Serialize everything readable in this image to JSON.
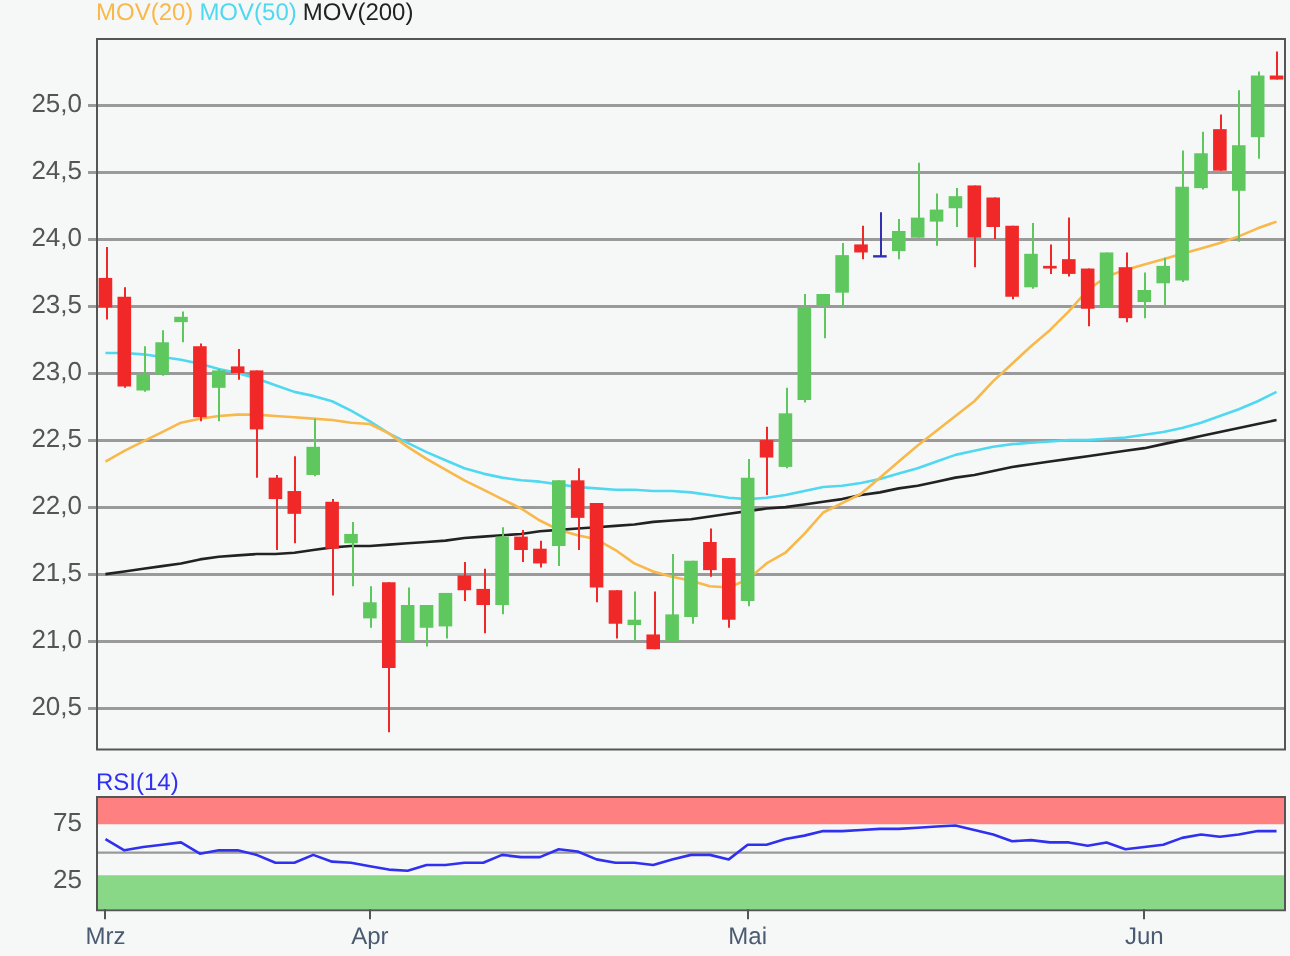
{
  "chart_data": [
    {
      "type": "candlestick",
      "categories": [
        null,
        null,
        null,
        null,
        null,
        null,
        null,
        null,
        null,
        null,
        null,
        null,
        null,
        null,
        null,
        null,
        null,
        null,
        null,
        null,
        null,
        null,
        null,
        null,
        null,
        null,
        null,
        null,
        null,
        null,
        null,
        null,
        null,
        null,
        null,
        null,
        null,
        null,
        null,
        null,
        null,
        null,
        null,
        null,
        null,
        null,
        null,
        null,
        null,
        null,
        null,
        null,
        null,
        null,
        null,
        null,
        null,
        null,
        null,
        null,
        null,
        null,
        null
      ],
      "ohlc": [
        [
          23.71,
          23.94,
          23.4,
          23.49
        ],
        [
          23.57,
          23.64,
          22.89,
          22.9
        ],
        [
          22.87,
          23.2,
          22.86,
          22.99
        ],
        [
          22.99,
          23.32,
          22.98,
          23.23
        ],
        [
          23.38,
          23.46,
          23.23,
          23.42
        ],
        [
          23.2,
          23.22,
          22.64,
          22.67
        ],
        [
          22.89,
          23.03,
          22.64,
          23.02
        ],
        [
          23.05,
          23.18,
          22.95,
          23.0
        ],
        [
          23.02,
          23.02,
          22.22,
          22.58
        ],
        [
          22.22,
          22.24,
          21.68,
          22.06
        ],
        [
          22.12,
          22.38,
          21.73,
          21.95
        ],
        [
          22.24,
          22.66,
          22.23,
          22.45
        ],
        [
          22.04,
          22.06,
          21.34,
          21.69
        ],
        [
          21.73,
          21.89,
          21.41,
          21.8
        ],
        [
          21.17,
          21.41,
          21.1,
          21.29
        ],
        [
          21.44,
          21.44,
          20.32,
          20.8
        ],
        [
          21.0,
          21.4,
          20.99,
          21.27
        ],
        [
          21.1,
          21.27,
          20.96,
          21.27
        ],
        [
          21.11,
          21.36,
          21.02,
          21.36
        ],
        [
          21.49,
          21.59,
          21.3,
          21.38
        ],
        [
          21.39,
          21.54,
          21.06,
          21.27
        ],
        [
          21.27,
          21.85,
          21.2,
          21.78
        ],
        [
          21.78,
          21.83,
          21.59,
          21.68
        ],
        [
          21.69,
          21.75,
          21.55,
          21.58
        ],
        [
          21.71,
          22.2,
          21.56,
          22.2
        ],
        [
          22.2,
          22.29,
          21.68,
          21.92
        ],
        [
          22.03,
          22.03,
          21.29,
          21.4
        ],
        [
          21.38,
          21.38,
          21.02,
          21.13
        ],
        [
          21.12,
          21.37,
          21.0,
          21.16
        ],
        [
          21.05,
          21.37,
          20.94,
          20.94
        ],
        [
          21.0,
          21.65,
          21.0,
          21.2
        ],
        [
          21.18,
          21.6,
          21.13,
          21.6
        ],
        [
          21.74,
          21.84,
          21.48,
          21.53
        ],
        [
          21.62,
          21.62,
          21.1,
          21.16
        ],
        [
          21.3,
          22.36,
          21.26,
          22.22
        ],
        [
          22.5,
          22.6,
          22.09,
          22.37
        ],
        [
          22.3,
          22.89,
          22.29,
          22.7
        ],
        [
          22.8,
          23.59,
          22.78,
          23.49
        ],
        [
          23.5,
          23.59,
          23.26,
          23.59
        ],
        [
          23.6,
          23.97,
          23.49,
          23.88
        ],
        [
          23.96,
          24.1,
          23.85,
          23.9
        ],
        [
          23.88,
          24.2,
          23.87,
          23.88
        ],
        [
          23.91,
          24.15,
          23.85,
          24.06
        ],
        [
          24.01,
          24.57,
          24.01,
          24.16
        ],
        [
          24.13,
          24.34,
          23.95,
          24.22
        ],
        [
          24.23,
          24.38,
          24.09,
          24.32
        ],
        [
          24.4,
          24.4,
          23.79,
          24.01
        ],
        [
          24.31,
          24.31,
          24.0,
          24.09
        ],
        [
          24.1,
          24.1,
          23.55,
          23.57
        ],
        [
          23.64,
          24.12,
          23.63,
          23.89
        ],
        [
          23.8,
          23.96,
          23.74,
          23.78
        ],
        [
          23.85,
          24.16,
          23.72,
          23.74
        ],
        [
          23.78,
          23.78,
          23.35,
          23.48
        ],
        [
          23.49,
          23.9,
          23.49,
          23.9
        ],
        [
          23.79,
          23.9,
          23.38,
          23.41
        ],
        [
          23.53,
          23.75,
          23.41,
          23.62
        ],
        [
          23.67,
          23.86,
          23.5,
          23.8
        ],
        [
          23.69,
          24.66,
          23.68,
          24.39
        ],
        [
          24.38,
          24.8,
          24.37,
          24.64
        ],
        [
          24.82,
          24.93,
          24.51,
          24.51
        ],
        [
          24.36,
          25.11,
          23.98,
          24.7
        ],
        [
          24.76,
          25.25,
          24.6,
          25.22
        ],
        [
          25.22,
          25.4,
          25.19,
          25.19
        ]
      ],
      "colors": [
        "#f02828",
        "#f02828",
        "#5ec85e",
        "#5ec85e",
        "#5ec85e",
        "#f02828",
        "#5ec85e",
        "#f02828",
        "#f02828",
        "#f02828",
        "#f02828",
        "#5ec85e",
        "#f02828",
        "#5ec85e",
        "#5ec85e",
        "#f02828",
        "#5ec85e",
        "#5ec85e",
        "#5ec85e",
        "#f02828",
        "#f02828",
        "#5ec85e",
        "#f02828",
        "#f02828",
        "#5ec85e",
        "#f02828",
        "#f02828",
        "#f02828",
        "#5ec85e",
        "#f02828",
        "#5ec85e",
        "#5ec85e",
        "#f02828",
        "#f02828",
        "#5ec85e",
        "#f02828",
        "#5ec85e",
        "#5ec85e",
        "#5ec85e",
        "#5ec85e",
        "#f02828",
        "#3030b0",
        "#5ec85e",
        "#5ec85e",
        "#5ec85e",
        "#5ec85e",
        "#f02828",
        "#f02828",
        "#f02828",
        "#5ec85e",
        "#f02828",
        "#f02828",
        "#f02828",
        "#5ec85e",
        "#f02828",
        "#5ec85e",
        "#5ec85e",
        "#5ec85e",
        "#5ec85e",
        "#f02828",
        "#5ec85e",
        "#5ec85e",
        "#f02828"
      ],
      "series": [
        {
          "name": "MOV(20)",
          "type": "line",
          "color": "#f8b84a",
          "values": [
            22.34,
            22.42,
            22.49,
            22.56,
            22.63,
            22.66,
            22.68,
            22.69,
            22.69,
            22.68,
            22.67,
            22.66,
            22.65,
            22.63,
            22.62,
            22.55,
            22.45,
            22.36,
            22.28,
            22.2,
            22.13,
            22.06,
            21.99,
            21.9,
            21.83,
            21.79,
            21.76,
            21.68,
            21.58,
            21.52,
            21.48,
            21.45,
            21.41,
            21.4,
            21.46,
            21.58,
            21.66,
            21.8,
            21.96,
            22.03,
            22.1,
            22.22,
            22.34,
            22.46,
            22.57,
            22.68,
            22.79,
            22.94,
            23.07,
            23.2,
            23.32,
            23.46,
            23.62,
            23.72,
            23.77,
            23.81,
            23.85,
            23.89,
            23.93,
            23.97,
            24.02,
            24.08,
            24.13
          ]
        },
        {
          "name": "MOV(50)",
          "type": "line",
          "color": "#50d8f0",
          "values": [
            23.15,
            23.15,
            23.14,
            23.12,
            23.1,
            23.07,
            23.03,
            23.0,
            22.96,
            22.91,
            22.86,
            22.83,
            22.79,
            22.72,
            22.64,
            22.55,
            22.48,
            22.41,
            22.35,
            22.29,
            22.25,
            22.22,
            22.2,
            22.19,
            22.17,
            22.15,
            22.14,
            22.13,
            22.13,
            22.12,
            22.12,
            22.11,
            22.09,
            22.07,
            22.06,
            22.07,
            22.09,
            22.12,
            22.15,
            22.16,
            22.18,
            22.21,
            22.25,
            22.29,
            22.34,
            22.39,
            22.42,
            22.45,
            22.47,
            22.48,
            22.49,
            22.5,
            22.5,
            22.51,
            22.52,
            22.54,
            22.56,
            22.59,
            22.63,
            22.68,
            22.73,
            22.79,
            22.86
          ]
        },
        {
          "name": "MOV(200)",
          "type": "line",
          "color": "#222222",
          "values": [
            21.5,
            21.52,
            21.54,
            21.56,
            21.58,
            21.61,
            21.63,
            21.64,
            21.65,
            21.65,
            21.66,
            21.68,
            21.7,
            21.71,
            21.71,
            21.72,
            21.73,
            21.74,
            21.75,
            21.77,
            21.78,
            21.79,
            21.8,
            21.82,
            21.83,
            21.84,
            21.85,
            21.86,
            21.87,
            21.89,
            21.9,
            21.91,
            21.93,
            21.95,
            21.97,
            21.99,
            22.0,
            22.02,
            22.04,
            22.06,
            22.09,
            22.11,
            22.14,
            22.16,
            22.19,
            22.22,
            22.24,
            22.27,
            22.3,
            22.32,
            22.34,
            22.36,
            22.38,
            22.4,
            22.42,
            22.44,
            22.47,
            22.5,
            22.53,
            22.56,
            22.59,
            22.62,
            22.65
          ]
        }
      ],
      "ylim": [
        20.2,
        25.5
      ],
      "yticks": [
        {
          "value": 20.5,
          "label": "20,5"
        },
        {
          "value": 21,
          "label": "21,0"
        },
        {
          "value": 21.5,
          "label": "21,5"
        },
        {
          "value": 22,
          "label": "22,0"
        },
        {
          "value": 22.5,
          "label": "22,5"
        },
        {
          "value": 23,
          "label": "23,0"
        },
        {
          "value": 23.5,
          "label": "23,5"
        },
        {
          "value": 24,
          "label": "24,0"
        },
        {
          "value": 24.5,
          "label": "24,5"
        },
        {
          "value": 25,
          "label": "25,0"
        }
      ],
      "grid": "y",
      "legend": "top left",
      "tick_labels": "y",
      "marker": "none"
    },
    {
      "type": "line",
      "categories": [
        "Mrz",
        null,
        null,
        null,
        null,
        null,
        null,
        null,
        null,
        null,
        null,
        null,
        null,
        null,
        "Apr",
        null,
        null,
        null,
        null,
        null,
        null,
        null,
        null,
        null,
        null,
        null,
        null,
        null,
        null,
        null,
        null,
        null,
        null,
        null,
        "Mai",
        null,
        null,
        null,
        null,
        null,
        null,
        null,
        null,
        null,
        null,
        null,
        null,
        null,
        null,
        null,
        null,
        null,
        null,
        null,
        null,
        "Jun",
        null,
        null,
        null,
        null,
        null,
        null,
        null
      ],
      "series": [
        {
          "name": "RSI(14)",
          "color": "#3030f0",
          "values": [
            62,
            52,
            55,
            57,
            59,
            49,
            52,
            52,
            48,
            41,
            41,
            48,
            42,
            41,
            38,
            35,
            34,
            39,
            39,
            41,
            41,
            48,
            46,
            46,
            53,
            51,
            44,
            41,
            41,
            39,
            44,
            48,
            48,
            44,
            57,
            57,
            62,
            65,
            69,
            69,
            70,
            71,
            71,
            72,
            73,
            74,
            70,
            66,
            60,
            61,
            59,
            59,
            56,
            59,
            53,
            55,
            57,
            63,
            66,
            64,
            66,
            69,
            69
          ]
        }
      ],
      "ylim": [
        0,
        100
      ],
      "yticks": [
        25,
        75
      ],
      "bands": [
        {
          "axis": "y",
          "from": 75,
          "to": 100,
          "color": "#ff8080"
        },
        {
          "axis": "y",
          "from": 0,
          "to": 30,
          "color": "#88d888"
        }
      ],
      "ref_lines": [
        {
          "axis": "y",
          "value": 50,
          "color": "#999999"
        }
      ],
      "grid": false,
      "legend": "top left",
      "marker": "none"
    }
  ]
}
